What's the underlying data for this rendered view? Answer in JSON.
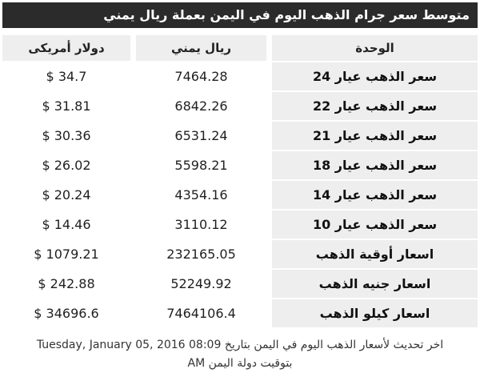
{
  "title": "متوسط سعر جرام الذهب اليوم في اليمن بعملة ريال يمني",
  "table": {
    "headers": {
      "usd": "دولار أمريكى",
      "yer": "ريال يمني",
      "unit": "الوحدة"
    },
    "rows": [
      {
        "unit": "سعر الذهب عيار 24",
        "yer": "7464.28",
        "usd": "$ 34.7"
      },
      {
        "unit": "سعر الذهب عيار 22",
        "yer": "6842.26",
        "usd": "$ 31.81"
      },
      {
        "unit": "سعر الذهب عيار 21",
        "yer": "6531.24",
        "usd": "$ 30.36"
      },
      {
        "unit": "سعر الذهب عيار 18",
        "yer": "5598.21",
        "usd": "$ 26.02"
      },
      {
        "unit": "سعر الذهب عيار 14",
        "yer": "4354.16",
        "usd": "$ 20.24"
      },
      {
        "unit": "سعر الذهب عيار 10",
        "yer": "3110.12",
        "usd": "$ 14.46"
      },
      {
        "unit": "اسعار أوقية الذهب",
        "yer": "232165.05",
        "usd": "$ 1079.21"
      },
      {
        "unit": "اسعار جنيه الذهب",
        "yer": "52249.92",
        "usd": "$ 242.88"
      },
      {
        "unit": "اسعار كيلو الذهب",
        "yer": "7464106.4",
        "usd": "$ 34696.6"
      }
    ]
  },
  "footer": {
    "line1_en": "Tuesday, January 05, 2016 08:09",
    "line1_ar": "اخر تحديث لأسعار الذهب اليوم في اليمن بتاريخ",
    "line2_en": "AM",
    "line2_ar": "بتوقيت دولة اليمن"
  },
  "colors": {
    "title_bar_bg": "#2b2b2b",
    "title_text": "#ffffff",
    "cell_bg": "#eeeeee",
    "body_text": "#222222",
    "footer_text": "#333333",
    "page_bg": "#ffffff"
  }
}
